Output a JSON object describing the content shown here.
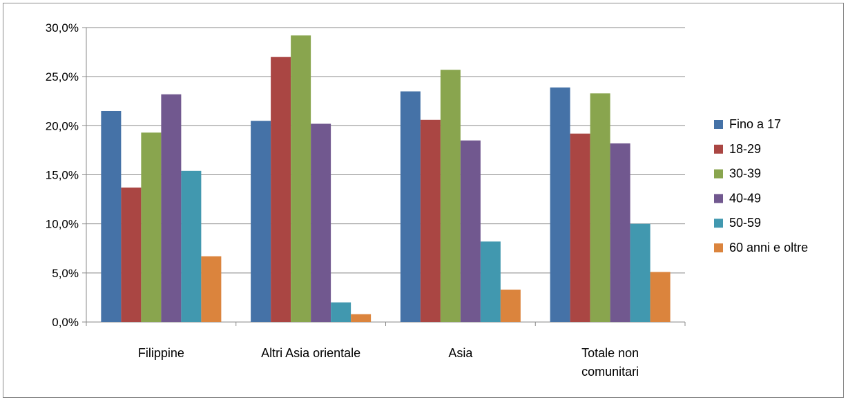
{
  "chart_data": {
    "type": "bar",
    "categories": [
      "Filippine",
      "Altri Asia orientale",
      "Asia",
      "Totale non comunitari"
    ],
    "series": [
      {
        "name": "Fino a 17",
        "color": "#4572A7",
        "values": [
          21.5,
          20.5,
          23.5,
          23.9
        ]
      },
      {
        "name": "18-29",
        "color": "#AA4643",
        "values": [
          13.7,
          27.0,
          20.6,
          19.2
        ]
      },
      {
        "name": "30-39",
        "color": "#89A54E",
        "values": [
          19.3,
          29.2,
          25.7,
          23.3
        ]
      },
      {
        "name": "40-49",
        "color": "#71588F",
        "values": [
          23.2,
          20.2,
          18.5,
          18.2
        ]
      },
      {
        "name": "50-59",
        "color": "#4198AF",
        "values": [
          15.4,
          2.0,
          8.2,
          10.0
        ]
      },
      {
        "name": "60 anni e oltre",
        "color": "#DB843D",
        "values": [
          6.7,
          0.8,
          3.3,
          5.1
        ]
      }
    ],
    "yticks": [
      "0,0%",
      "5,0%",
      "10,0%",
      "15,0%",
      "20,0%",
      "25,0%",
      "30,0%"
    ],
    "ylim": [
      0,
      30
    ],
    "grid": true,
    "legend": "right",
    "title": "",
    "xlabel": "",
    "ylabel": ""
  }
}
